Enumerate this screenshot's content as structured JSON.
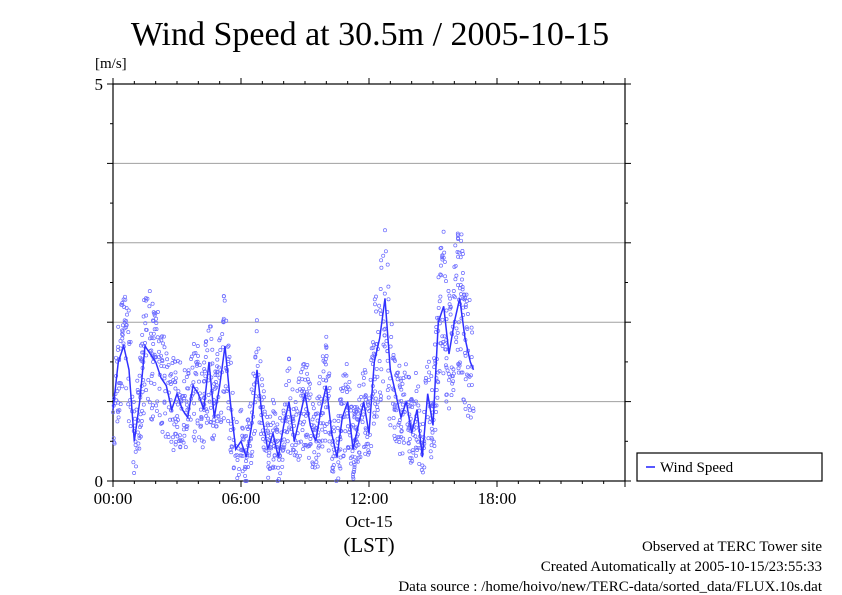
{
  "chart_data": {
    "type": "line",
    "title": "Wind Speed at 30.5m / 2005-10-15",
    "ylabel": "[m/s]",
    "ylim": [
      0,
      5
    ],
    "y_ticks": [
      "0",
      "5"
    ],
    "xlim_hours": [
      0,
      24
    ],
    "x_ticks": [
      {
        "hour": 0,
        "label": "00:00"
      },
      {
        "hour": 6,
        "label": "06:00"
      },
      {
        "hour": 12,
        "label": "12:00"
      },
      {
        "hour": 18,
        "label": "18:00"
      }
    ],
    "x_date_label": "Oct-15",
    "x_axis_label": "(LST)",
    "grid": "horizontal",
    "legend": {
      "position": "right",
      "entries": [
        {
          "name": "Wind Speed",
          "color": "#3030ff"
        }
      ]
    },
    "series": [
      {
        "name": "Wind Speed",
        "color": "#3030ff",
        "x_hours": [
          0.0,
          0.25,
          0.5,
          0.75,
          1.0,
          1.25,
          1.5,
          1.75,
          2.0,
          2.25,
          2.5,
          2.75,
          3.0,
          3.25,
          3.5,
          3.75,
          4.0,
          4.25,
          4.5,
          4.75,
          5.0,
          5.25,
          5.5,
          5.75,
          6.0,
          6.25,
          6.5,
          6.75,
          7.0,
          7.25,
          7.5,
          7.75,
          8.0,
          8.25,
          8.5,
          8.75,
          9.0,
          9.25,
          9.5,
          9.75,
          10.0,
          10.25,
          10.5,
          10.75,
          11.0,
          11.25,
          11.5,
          11.75,
          12.0,
          12.25,
          12.5,
          12.75,
          13.0,
          13.25,
          13.5,
          13.75,
          14.0,
          14.25,
          14.5,
          14.75,
          15.0,
          15.25,
          15.5,
          15.75,
          16.0,
          16.25,
          16.5,
          16.75,
          16.9
        ],
        "values": [
          0.9,
          1.5,
          1.7,
          1.4,
          0.5,
          1.0,
          1.7,
          1.6,
          1.5,
          1.3,
          1.2,
          0.9,
          1.1,
          0.9,
          0.8,
          1.2,
          1.1,
          0.9,
          1.5,
          0.8,
          1.2,
          1.7,
          1.0,
          0.4,
          0.5,
          0.3,
          0.7,
          1.4,
          0.8,
          0.4,
          0.6,
          0.3,
          0.7,
          1.0,
          0.5,
          0.8,
          1.1,
          0.7,
          0.5,
          0.9,
          1.2,
          0.6,
          0.3,
          0.8,
          1.0,
          0.4,
          0.7,
          1.0,
          0.6,
          1.5,
          1.8,
          2.3,
          1.4,
          1.1,
          0.8,
          1.0,
          0.6,
          0.9,
          0.3,
          1.1,
          0.7,
          2.0,
          2.2,
          1.6,
          2.0,
          2.3,
          1.8,
          1.5,
          1.4
        ]
      }
    ]
  },
  "footer": {
    "line1": "Observed at TERC Tower site",
    "line2": "Created Automatically at 2005-10-15/23:55:33",
    "line3": "Data source : /home/hoivo/new/TERC-data/sorted_data/FLUX.10s.dat"
  }
}
